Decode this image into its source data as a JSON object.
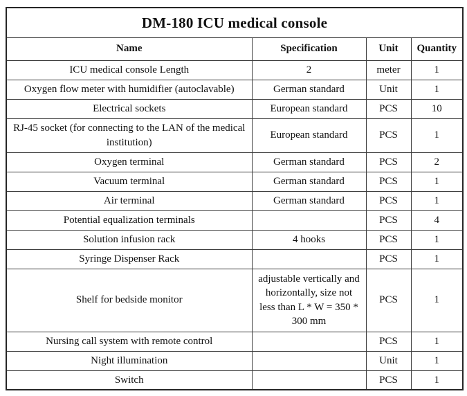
{
  "title": "DM-180 ICU medical console",
  "table": {
    "headers": {
      "name": "Name",
      "spec": "Specification",
      "unit": "Unit",
      "qty": "Quantity"
    },
    "rows": [
      {
        "name": "ICU medical console Length",
        "spec": "2",
        "unit": "meter",
        "qty": "1"
      },
      {
        "name": "Oxygen flow meter with humidifier (autoclavable)",
        "spec": "German standard",
        "unit": "Unit",
        "qty": "1"
      },
      {
        "name": "Electrical sockets",
        "spec": "European standard",
        "unit": "PCS",
        "qty": "10"
      },
      {
        "name": "RJ-45 socket (for connecting to the LAN of the medical institution)",
        "spec": "European standard",
        "unit": "PCS",
        "qty": "1"
      },
      {
        "name": "Oxygen terminal",
        "spec": "German standard",
        "unit": "PCS",
        "qty": "2"
      },
      {
        "name": "Vacuum terminal",
        "spec": "German standard",
        "unit": "PCS",
        "qty": "1"
      },
      {
        "name": "Air terminal",
        "spec": "German standard",
        "unit": "PCS",
        "qty": "1"
      },
      {
        "name": "Potential equalization terminals",
        "spec": "",
        "unit": "PCS",
        "qty": "4"
      },
      {
        "name": "Solution infusion rack",
        "spec": "4 hooks",
        "unit": "PCS",
        "qty": "1"
      },
      {
        "name": "Syringe Dispenser Rack",
        "spec": "",
        "unit": "PCS",
        "qty": "1"
      },
      {
        "name": "Shelf for bedside monitor",
        "spec": "adjustable vertically and horizontally, size not less than L * W = 350 * 300 mm",
        "unit": "PCS",
        "qty": "1"
      },
      {
        "name": "Nursing call system with remote control",
        "spec": "",
        "unit": "PCS",
        "qty": "1"
      },
      {
        "name": "Night illumination",
        "spec": "",
        "unit": "Unit",
        "qty": "1"
      },
      {
        "name": "Switch",
        "spec": "",
        "unit": "PCS",
        "qty": "1"
      }
    ]
  },
  "colors": {
    "background": "#ffffff",
    "text": "#111111",
    "border_outer": "#262626",
    "border_inner": "#3a3a3a"
  }
}
